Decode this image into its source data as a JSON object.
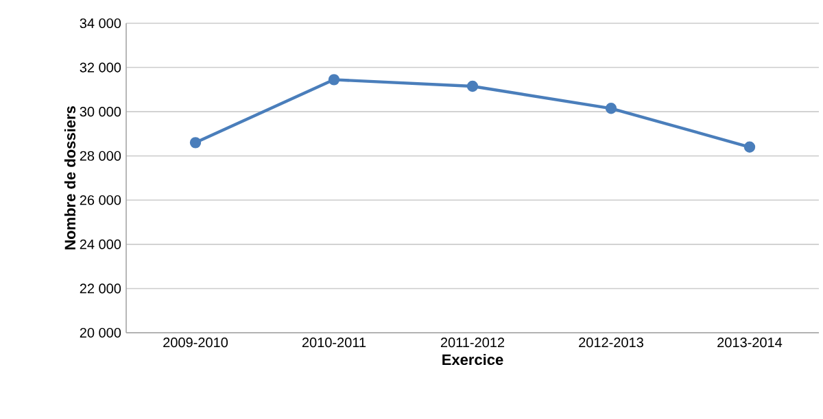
{
  "chart_data": {
    "type": "line",
    "xlabel": "Exercice",
    "ylabel": "Nombre de dossiers",
    "categories": [
      "2009-2010",
      "2010-2011",
      "2011-2012",
      "2012-2013",
      "2013-2014"
    ],
    "series": [
      {
        "color": "#4a7ebb",
        "values": [
          28600,
          31450,
          31150,
          30150,
          28400
        ]
      }
    ],
    "ylim": [
      20000,
      34000
    ],
    "yticks": [
      {
        "value": 20000,
        "label": "20 000"
      },
      {
        "value": 22000,
        "label": "22 000"
      },
      {
        "value": 24000,
        "label": "24 000"
      },
      {
        "value": 26000,
        "label": "26 000"
      },
      {
        "value": 28000,
        "label": "28 000"
      },
      {
        "value": 30000,
        "label": "30 000"
      },
      {
        "value": 32000,
        "label": "32 000"
      },
      {
        "value": 34000,
        "label": "34 000"
      }
    ],
    "grid": "y",
    "marker": "circle",
    "line_style": "solid"
  }
}
